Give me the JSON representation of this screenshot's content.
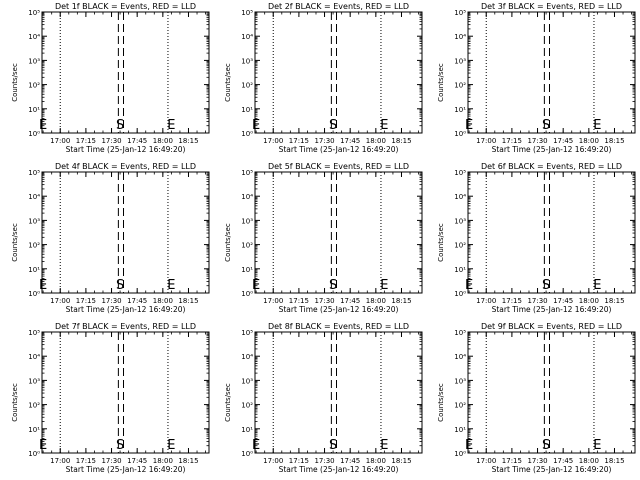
{
  "chart_data": [
    {
      "type": "line",
      "title": "Det 1f BLACK = Events, RED = LLD",
      "xlabel": "Start Time (25-Jan-12 16:49:20)",
      "ylabel": "Counts/sec",
      "x_ticks": [
        "17:00",
        "17:15",
        "17:30",
        "17:45",
        "18:00",
        "18:15"
      ],
      "y_ticks": [
        "10⁰",
        "10¹",
        "10²",
        "10³",
        "10⁴",
        "10⁵"
      ],
      "ylim": [
        1,
        100000
      ],
      "yscale": "log",
      "dotted_markers": [
        "17:00",
        "18:03"
      ],
      "dashed_markers": [
        "17:34",
        "17:37"
      ],
      "labels": [
        {
          "text": "E",
          "x": "16:50"
        },
        {
          "text": "S",
          "x": "17:35"
        },
        {
          "text": "E",
          "x": "18:05"
        }
      ],
      "series": []
    },
    {
      "type": "line",
      "title": "Det 2f BLACK = Events, RED = LLD",
      "xlabel": "Start Time (25-Jan-12 16:49:20)",
      "ylabel": "Counts/sec",
      "x_ticks": [
        "17:00",
        "17:15",
        "17:30",
        "17:45",
        "18:00",
        "18:15"
      ],
      "y_ticks": [
        "10⁰",
        "10¹",
        "10²",
        "10³",
        "10⁴",
        "10⁵"
      ],
      "ylim": [
        1,
        100000
      ],
      "yscale": "log",
      "dotted_markers": [
        "17:00",
        "18:03"
      ],
      "dashed_markers": [
        "17:34",
        "17:37"
      ],
      "labels": [
        {
          "text": "E",
          "x": "16:50"
        },
        {
          "text": "S",
          "x": "17:35"
        },
        {
          "text": "E",
          "x": "18:05"
        }
      ],
      "series": []
    },
    {
      "type": "line",
      "title": "Det 3f BLACK = Events, RED = LLD",
      "xlabel": "Start Time (25-Jan-12 16:49:20)",
      "ylabel": "Counts/sec",
      "x_ticks": [
        "17:00",
        "17:15",
        "17:30",
        "17:45",
        "18:00",
        "18:15"
      ],
      "y_ticks": [
        "10⁰",
        "10¹",
        "10²",
        "10³",
        "10⁴",
        "10⁵"
      ],
      "ylim": [
        1,
        100000
      ],
      "yscale": "log",
      "dotted_markers": [
        "17:00",
        "18:03"
      ],
      "dashed_markers": [
        "17:34",
        "17:37"
      ],
      "labels": [
        {
          "text": "E",
          "x": "16:50"
        },
        {
          "text": "S",
          "x": "17:35"
        },
        {
          "text": "E",
          "x": "18:05"
        }
      ],
      "series": []
    },
    {
      "type": "line",
      "title": "Det 4f BLACK = Events, RED = LLD",
      "xlabel": "Start Time (25-Jan-12 16:49:20)",
      "ylabel": "Counts/sec",
      "x_ticks": [
        "17:00",
        "17:15",
        "17:30",
        "17:45",
        "18:00",
        "18:15"
      ],
      "y_ticks": [
        "10⁰",
        "10¹",
        "10²",
        "10³",
        "10⁴",
        "10⁵"
      ],
      "ylim": [
        1,
        100000
      ],
      "yscale": "log",
      "dotted_markers": [
        "17:00",
        "18:03"
      ],
      "dashed_markers": [
        "17:34",
        "17:37"
      ],
      "labels": [
        {
          "text": "E",
          "x": "16:50"
        },
        {
          "text": "S",
          "x": "17:35"
        },
        {
          "text": "E",
          "x": "18:05"
        }
      ],
      "series": []
    },
    {
      "type": "line",
      "title": "Det 5f BLACK = Events, RED = LLD",
      "xlabel": "Start Time (25-Jan-12 16:49:20)",
      "ylabel": "Counts/sec",
      "x_ticks": [
        "17:00",
        "17:15",
        "17:30",
        "17:45",
        "18:00",
        "18:15"
      ],
      "y_ticks": [
        "10⁰",
        "10¹",
        "10²",
        "10³",
        "10⁴",
        "10⁵"
      ],
      "ylim": [
        1,
        100000
      ],
      "yscale": "log",
      "dotted_markers": [
        "17:00",
        "18:03"
      ],
      "dashed_markers": [
        "17:34",
        "17:37"
      ],
      "labels": [
        {
          "text": "E",
          "x": "16:50"
        },
        {
          "text": "S",
          "x": "17:35"
        },
        {
          "text": "E",
          "x": "18:05"
        }
      ],
      "series": []
    },
    {
      "type": "line",
      "title": "Det 6f BLACK = Events, RED = LLD",
      "xlabel": "Start Time (25-Jan-12 16:49:20)",
      "ylabel": "Counts/sec",
      "x_ticks": [
        "17:00",
        "17:15",
        "17:30",
        "17:45",
        "18:00",
        "18:15"
      ],
      "y_ticks": [
        "10⁰",
        "10¹",
        "10²",
        "10³",
        "10⁴",
        "10⁵"
      ],
      "ylim": [
        1,
        100000
      ],
      "yscale": "log",
      "dotted_markers": [
        "17:00",
        "18:03"
      ],
      "dashed_markers": [
        "17:34",
        "17:37"
      ],
      "labels": [
        {
          "text": "E",
          "x": "16:50"
        },
        {
          "text": "S",
          "x": "17:35"
        },
        {
          "text": "E",
          "x": "18:05"
        }
      ],
      "series": []
    },
    {
      "type": "line",
      "title": "Det 7f BLACK = Events, RED = LLD",
      "xlabel": "Start Time (25-Jan-12 16:49:20)",
      "ylabel": "Counts/sec",
      "x_ticks": [
        "17:00",
        "17:15",
        "17:30",
        "17:45",
        "18:00",
        "18:15"
      ],
      "y_ticks": [
        "10⁰",
        "10¹",
        "10²",
        "10³",
        "10⁴",
        "10⁵"
      ],
      "ylim": [
        1,
        100000
      ],
      "yscale": "log",
      "dotted_markers": [
        "17:00",
        "18:03"
      ],
      "dashed_markers": [
        "17:34",
        "17:37"
      ],
      "labels": [
        {
          "text": "E",
          "x": "16:50"
        },
        {
          "text": "S",
          "x": "17:35"
        },
        {
          "text": "E",
          "x": "18:05"
        }
      ],
      "series": []
    },
    {
      "type": "line",
      "title": "Det 8f BLACK = Events, RED = LLD",
      "xlabel": "Start Time (25-Jan-12 16:49:20)",
      "ylabel": "Counts/sec",
      "x_ticks": [
        "17:00",
        "17:15",
        "17:30",
        "17:45",
        "18:00",
        "18:15"
      ],
      "y_ticks": [
        "10⁰",
        "10¹",
        "10²",
        "10³",
        "10⁴",
        "10⁵"
      ],
      "ylim": [
        1,
        100000
      ],
      "yscale": "log",
      "dotted_markers": [
        "17:00",
        "18:03"
      ],
      "dashed_markers": [
        "17:34",
        "17:37"
      ],
      "labels": [
        {
          "text": "E",
          "x": "16:50"
        },
        {
          "text": "S",
          "x": "17:35"
        },
        {
          "text": "E",
          "x": "18:05"
        }
      ],
      "series": []
    },
    {
      "type": "line",
      "title": "Det 9f BLACK = Events, RED = LLD",
      "xlabel": "Start Time (25-Jan-12 16:49:20)",
      "ylabel": "Counts/sec",
      "x_ticks": [
        "17:00",
        "17:15",
        "17:30",
        "17:45",
        "18:00",
        "18:15"
      ],
      "y_ticks": [
        "10⁰",
        "10¹",
        "10²",
        "10³",
        "10⁴",
        "10⁵"
      ],
      "ylim": [
        1,
        100000
      ],
      "yscale": "log",
      "dotted_markers": [
        "17:00",
        "18:03"
      ],
      "dashed_markers": [
        "17:34",
        "17:37"
      ],
      "labels": [
        {
          "text": "E",
          "x": "16:50"
        },
        {
          "text": "S",
          "x": "17:35"
        },
        {
          "text": "E",
          "x": "18:05"
        }
      ],
      "series": []
    }
  ]
}
